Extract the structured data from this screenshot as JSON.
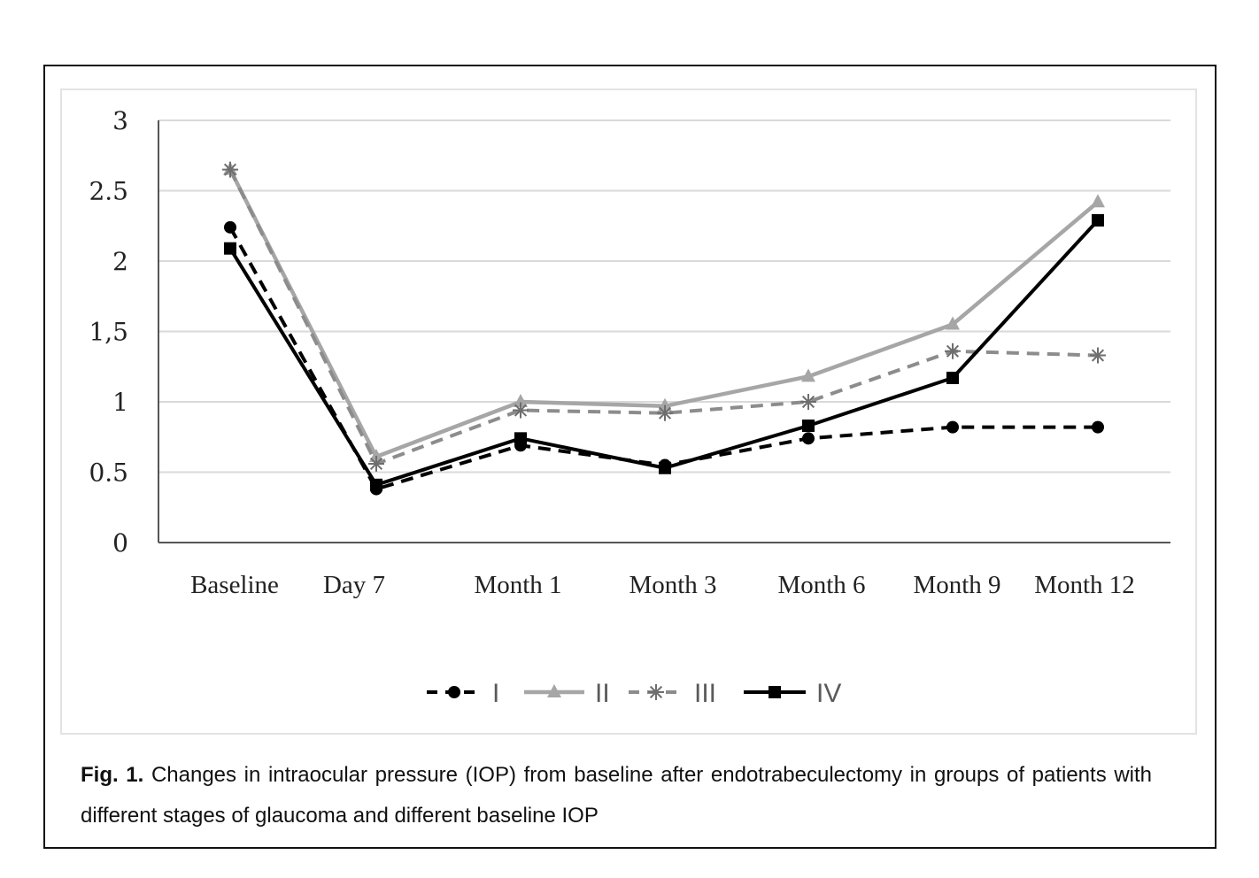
{
  "chart_data": {
    "type": "line",
    "title": "",
    "xlabel": "",
    "ylabel": "",
    "categories": [
      "Baseline",
      "Day 7",
      "Month 1",
      "Month 3",
      "Month 6",
      "Month 9",
      "Month 12"
    ],
    "ylim": [
      0,
      3
    ],
    "yticks": [
      0,
      0.5,
      1,
      1.5,
      2,
      2.5,
      3
    ],
    "ytick_labels": [
      "0",
      "0.5",
      "1",
      "1,5",
      "2",
      "2.5",
      "3"
    ],
    "grid": true,
    "legend_position": "bottom",
    "series": [
      {
        "name": "I",
        "color": "#000000",
        "dash": "dashed",
        "marker": "circle",
        "values": [
          2.24,
          0.38,
          0.69,
          0.55,
          0.74,
          0.82,
          0.82
        ]
      },
      {
        "name": "II",
        "color": "#a6a6a6",
        "dash": "solid",
        "marker": "triangle",
        "values": [
          2.65,
          0.61,
          1.0,
          0.97,
          1.18,
          1.55,
          2.42
        ]
      },
      {
        "name": "III",
        "color": "#8c8c8c",
        "dash": "dashed",
        "marker": "star",
        "values": [
          2.65,
          0.56,
          0.94,
          0.92,
          1.0,
          1.36,
          1.33
        ]
      },
      {
        "name": "IV",
        "color": "#000000",
        "dash": "solid",
        "marker": "square",
        "values": [
          2.09,
          0.41,
          0.74,
          0.53,
          0.83,
          1.17,
          2.29
        ]
      }
    ]
  },
  "caption": {
    "label": "Fig. 1.",
    "text": " Changes in intraocular pressure (IOP) from baseline after endotrabeculectomy in groups of patients with different stages of glaucoma and different baseline IOP"
  }
}
